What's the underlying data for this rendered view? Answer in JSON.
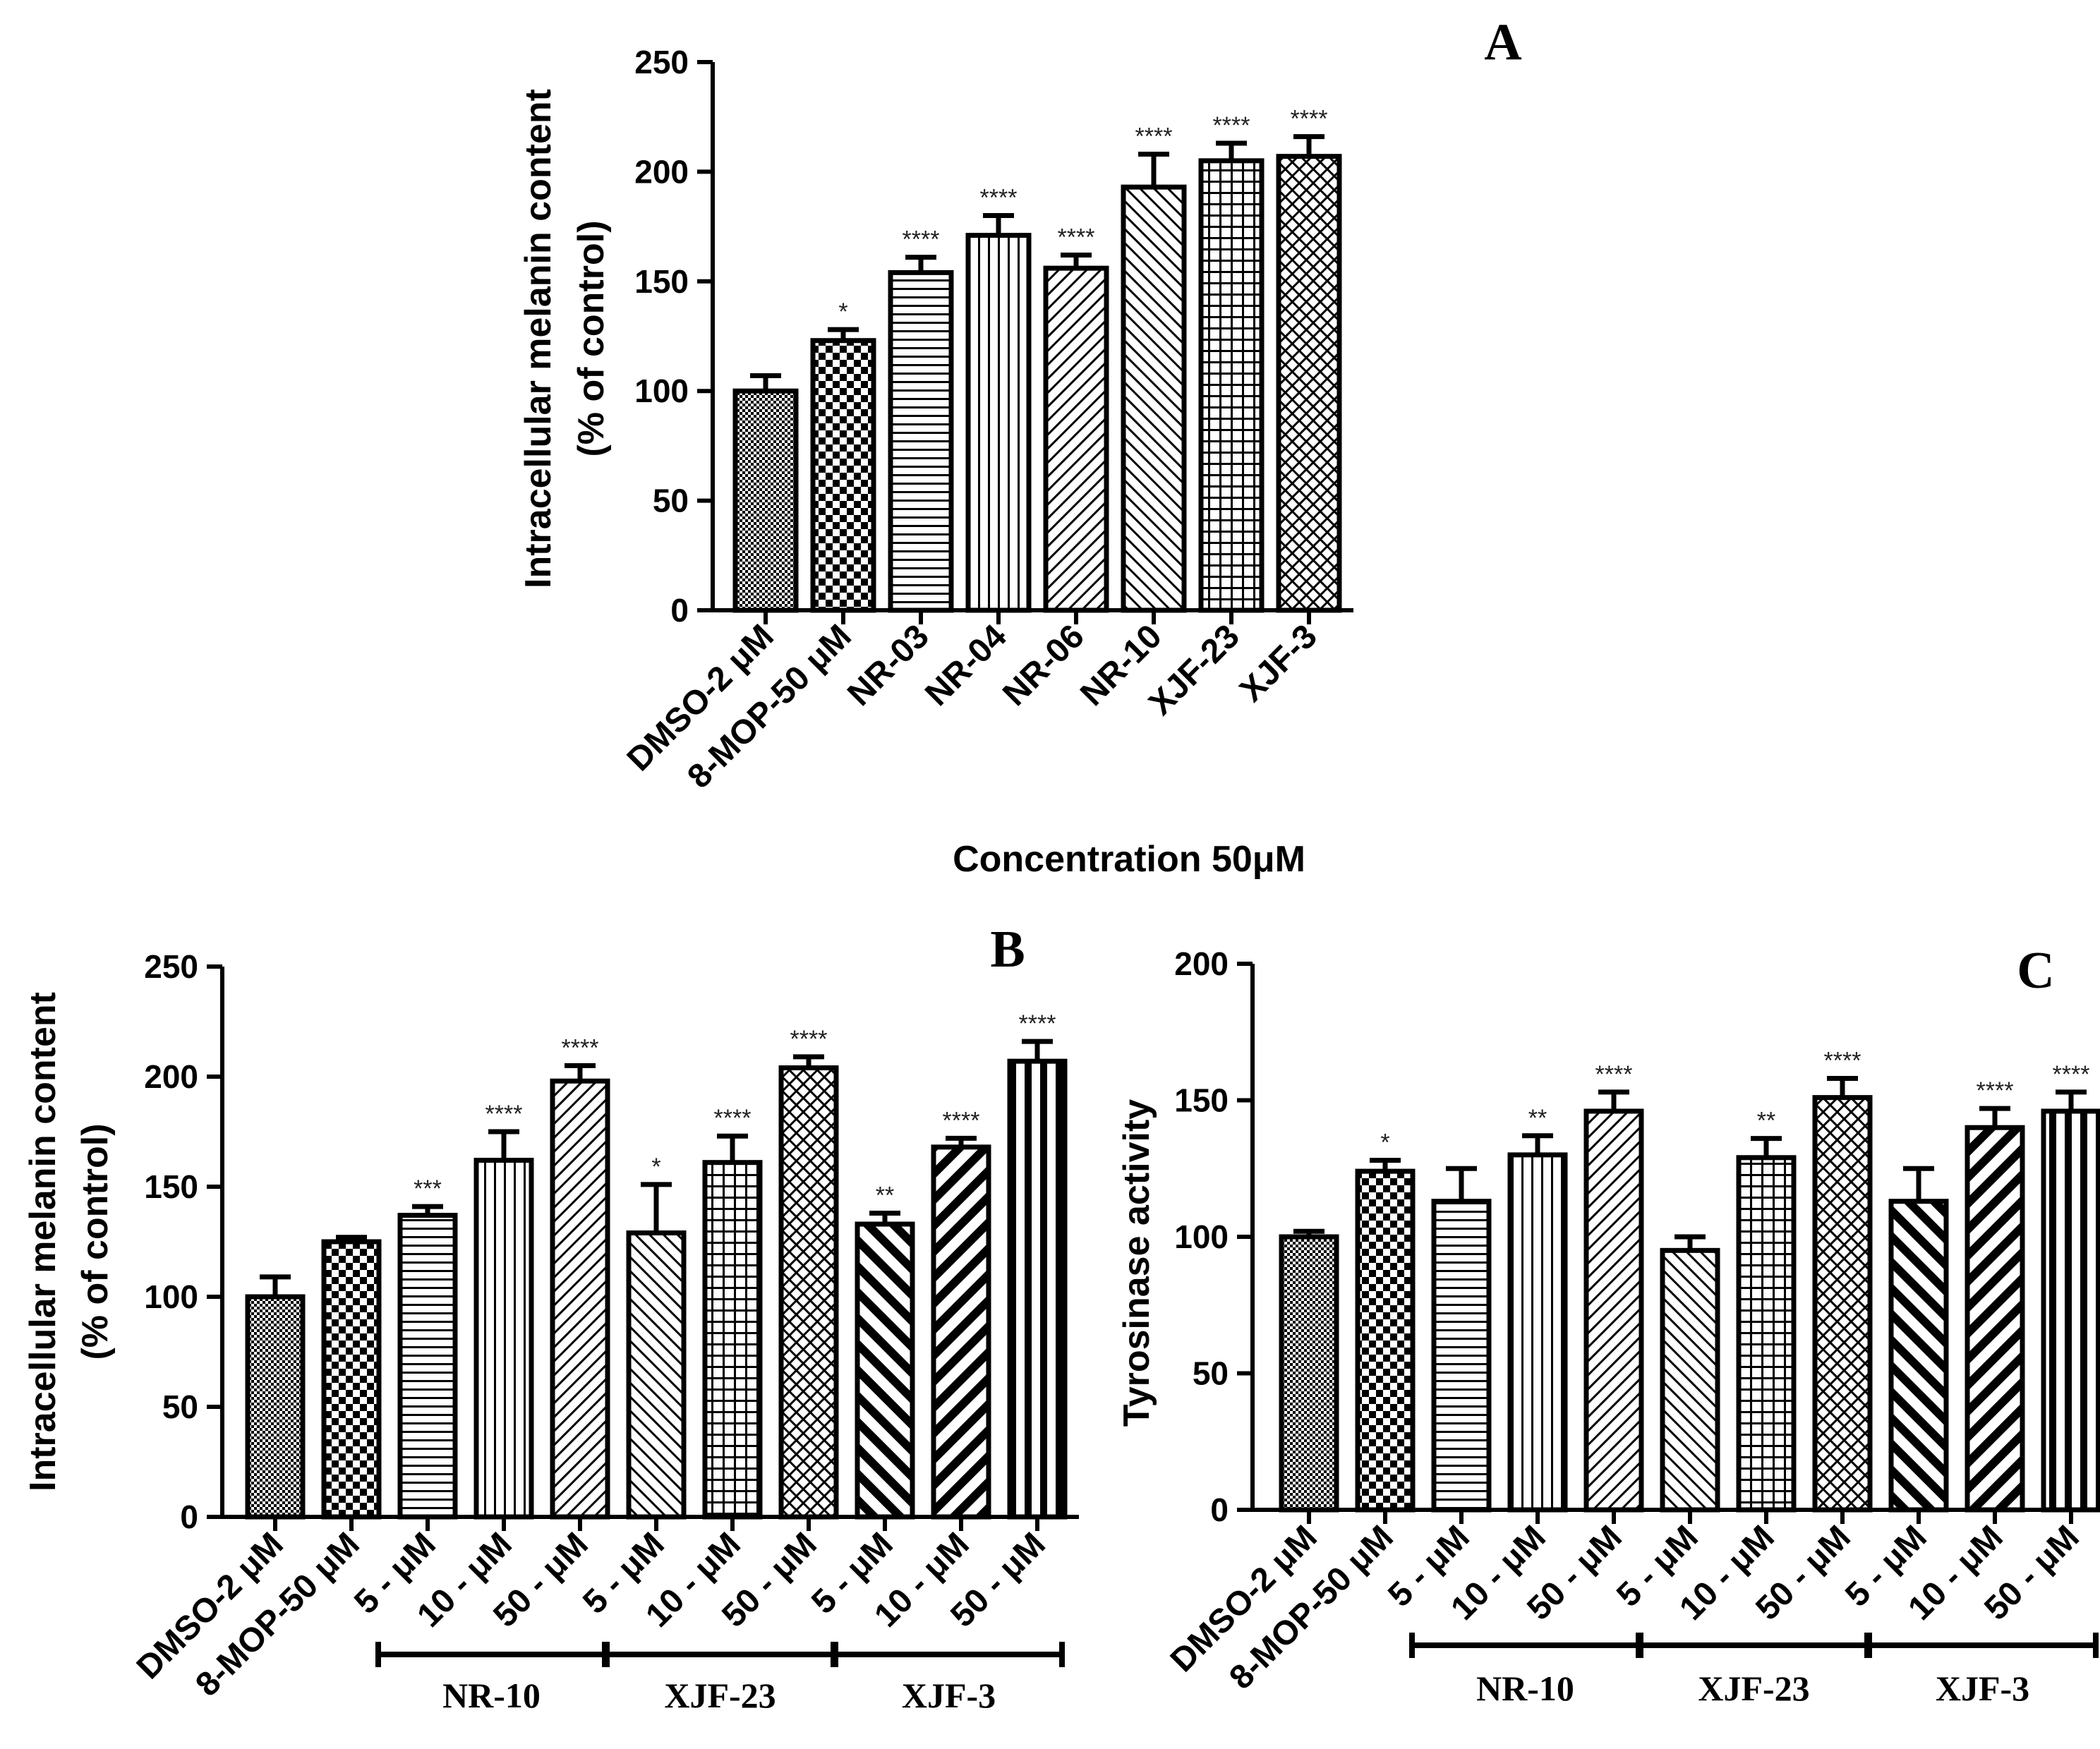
{
  "chart_data": [
    {
      "id": "A",
      "type": "bar",
      "panel_label": "A",
      "categories": [
        "DMSO-2 μM",
        "8-MOP-50 μM",
        "NR-03",
        "NR-04",
        "NR-06",
        "NR-10",
        "XJF-23",
        "XJF-3"
      ],
      "values": [
        100,
        123,
        154,
        171,
        156,
        193,
        205,
        207
      ],
      "errors": [
        7,
        5,
        7,
        9,
        6,
        15,
        8,
        9
      ],
      "significance": [
        "",
        "*",
        "****",
        "****",
        "****",
        "****",
        "****",
        "****"
      ],
      "patterns": [
        "fine-check",
        "checker",
        "hlines",
        "vlines",
        "diag-fwd",
        "diag-back",
        "grid",
        "diamond"
      ],
      "ylabel_line1": "Intracellular melanin content",
      "ylabel_line2": "(% of control)",
      "xlabel": "Concentration 50μM",
      "ylim": [
        0,
        250
      ],
      "yticks": [
        0,
        50,
        100,
        150,
        200,
        250
      ],
      "groups": []
    },
    {
      "id": "B",
      "type": "bar",
      "panel_label": "B",
      "categories": [
        "DMSO-2 μM",
        "8-MOP-50 μM",
        "5 - μM",
        "10 - μM",
        "50 - μM",
        "5 - μM",
        "10 - μM",
        "50 - μM",
        "5 - μM",
        "10 - μM",
        "50 - μM"
      ],
      "values": [
        100,
        125,
        137,
        162,
        198,
        129,
        161,
        204,
        133,
        168,
        207
      ],
      "errors": [
        9,
        2,
        4,
        13,
        7,
        22,
        12,
        5,
        5,
        4,
        9
      ],
      "significance": [
        "",
        "",
        "***",
        "****",
        "****",
        "*",
        "****",
        "****",
        "**",
        "****",
        "****"
      ],
      "patterns": [
        "fine-check",
        "checker",
        "hlines",
        "vlines",
        "diag-fwd",
        "diag-back",
        "grid",
        "diamond",
        "thick-back",
        "thick-fwd",
        "thick-vlines"
      ],
      "ylabel_line1": "Intracellular melanin content",
      "ylabel_line2": "(% of control)",
      "xlabel": "",
      "ylim": [
        0,
        250
      ],
      "yticks": [
        0,
        50,
        100,
        150,
        200,
        250
      ],
      "groups": [
        {
          "label": "NR-10",
          "from": 2,
          "to": 4
        },
        {
          "label": "XJF-23",
          "from": 5,
          "to": 7
        },
        {
          "label": "XJF-3",
          "from": 8,
          "to": 10
        }
      ]
    },
    {
      "id": "C",
      "type": "bar",
      "panel_label": "C",
      "categories": [
        "DMSO-2 μM",
        "8-MOP-50 μM",
        "5 - μM",
        "10 - μM",
        "50 - μM",
        "5 - μM",
        "10 - μM",
        "50 - μM",
        "5 - μM",
        "10 - μM",
        "50 - μM"
      ],
      "values": [
        100,
        124,
        113,
        130,
        146,
        95,
        129,
        151,
        113,
        140,
        146
      ],
      "errors": [
        2,
        4,
        12,
        7,
        7,
        5,
        7,
        7,
        12,
        7,
        7
      ],
      "significance": [
        "",
        "*",
        "",
        "**",
        "****",
        "",
        "**",
        "****",
        "",
        "****",
        "****"
      ],
      "patterns": [
        "fine-check",
        "checker",
        "hlines",
        "vlines",
        "diag-fwd",
        "diag-back",
        "grid",
        "diamond",
        "thick-back",
        "thick-fwd",
        "thick-vlines"
      ],
      "ylabel_line1": "Tyrosinase activity",
      "ylabel_line2": "",
      "xlabel": "",
      "ylim": [
        0,
        200
      ],
      "yticks": [
        0,
        50,
        100,
        150,
        200
      ],
      "groups": [
        {
          "label": "NR-10",
          "from": 2,
          "to": 4
        },
        {
          "label": "XJF-23",
          "from": 5,
          "to": 7
        },
        {
          "label": "XJF-3",
          "from": 8,
          "to": 10
        }
      ]
    }
  ]
}
